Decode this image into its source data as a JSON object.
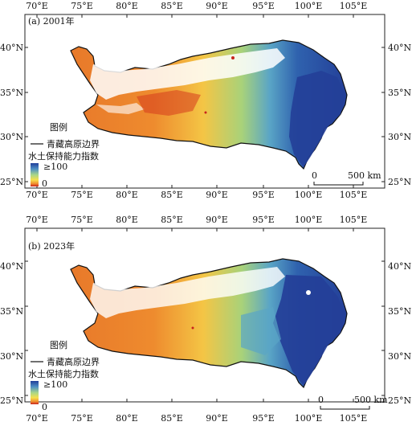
{
  "panels": [
    {
      "label": "(a) 2001年",
      "legend": {
        "title": "图例",
        "boundary_label": "青藏高原边界",
        "index_title": "水土保持能力指数",
        "max_label": "≥100",
        "min_label": "0"
      },
      "scalebar": {
        "start": "0",
        "end": "500 km"
      },
      "lon_ticks": [
        "70°E",
        "75°E",
        "80°E",
        "85°E",
        "90°E",
        "95°E",
        "100°E",
        "105°E"
      ],
      "lat_ticks": [
        "40°N",
        "35°N",
        "30°N",
        "25°N"
      ]
    },
    {
      "label": "(b) 2023年",
      "legend": {
        "title": "图例",
        "boundary_label": "青藏高原边界",
        "index_title": "水土保持能力指数",
        "max_label": "≥100",
        "min_label": "0"
      },
      "scalebar": {
        "start": "0",
        "end": "500 km"
      },
      "lon_ticks": [
        "70°E",
        "75°E",
        "80°E",
        "85°E",
        "90°E",
        "95°E",
        "100°E",
        "105°E"
      ],
      "lat_ticks": [
        "40°N",
        "35°N",
        "30°N",
        "25°N"
      ]
    }
  ],
  "colors": {
    "low": "#c8231c",
    "mid_low": "#f08c2c",
    "mid": "#f5e04a",
    "mid_high": "#7ec8a0",
    "high": "#2a5ea8",
    "very_high": "#213f9a"
  }
}
